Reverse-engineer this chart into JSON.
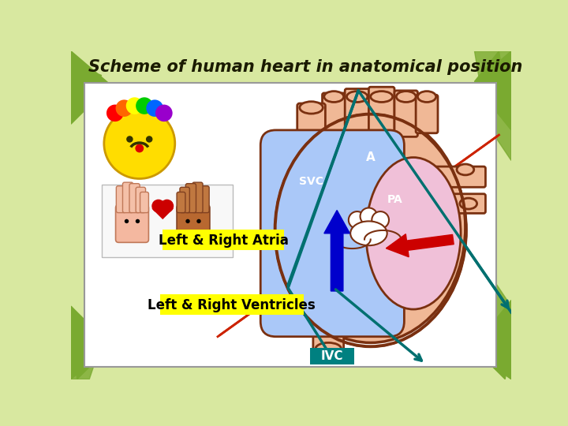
{
  "title": "Scheme of human heart in anatomical position",
  "title_color": "#1a1a00",
  "bg_outer": "#d8e8a0",
  "bg_inner": "#ffffff",
  "label_atria": "Left & Right Atria",
  "label_ventricles": "Left & Right Ventricles",
  "label_ivc": "IVC",
  "label_svc": "SVC",
  "label_a": "A",
  "label_pa": "PA",
  "label_bg": "#ffff00",
  "ivc_bg": "#008080",
  "heart_skin": "#f0b896",
  "heart_outline": "#7a3010",
  "right_chamber": "#aac8f8",
  "left_chamber": "#f0c0d8",
  "arrow_blue": "#0000cc",
  "arrow_red": "#cc0000",
  "line_teal": "#007070",
  "line_red": "#cc2200",
  "grass_green": "#7aaa30",
  "valve_white": "#ffffff"
}
